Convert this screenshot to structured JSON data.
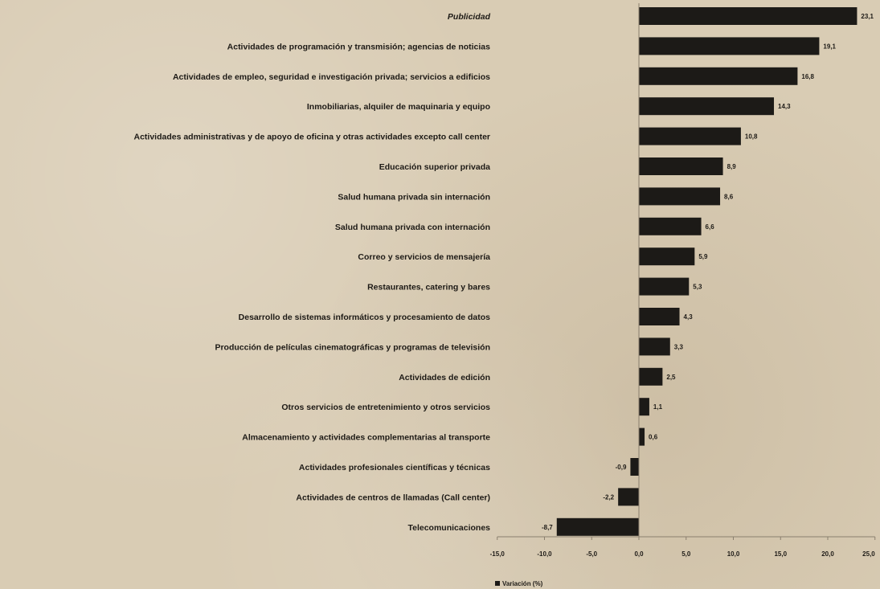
{
  "chart_data": {
    "type": "bar",
    "orientation": "horizontal",
    "categories": [
      "Publicidad",
      "Actividades de programación y transmisión; agencias de noticias",
      "Actividades de empleo, seguridad e investigación privada; servicios a edificios",
      "Inmobiliarias, alquiler de maquinaria y equipo",
      "Actividades administrativas y de apoyo de oficina y otras actividades excepto call center",
      "Educación superior privada",
      "Salud humana privada sin internación",
      "Salud humana privada con internación",
      "Correo y servicios de mensajería",
      "Restaurantes, catering y bares",
      "Desarrollo de sistemas informáticos y procesamiento de datos",
      "Producción de películas cinematográficas y programas de televisión",
      "Actividades de edición",
      "Otros servicios de entretenimiento y otros servicios",
      "Almacenamiento y actividades complementarias al transporte",
      "Actividades profesionales científicas y técnicas",
      "Actividades de centros de llamadas (Call center)",
      "Telecomunicaciones"
    ],
    "values": [
      23.1,
      19.1,
      16.8,
      14.3,
      10.8,
      8.9,
      8.6,
      6.6,
      5.9,
      5.3,
      4.3,
      3.3,
      2.5,
      1.1,
      0.6,
      -0.9,
      -2.2,
      -8.7
    ],
    "value_labels": [
      "23,1",
      "19,1",
      "16,8",
      "14,3",
      "10,8",
      "8,9",
      "8,6",
      "6,6",
      "5,9",
      "5,3",
      "4,3",
      "3,3",
      "2,5",
      "1,1",
      "0,6",
      "-0,9",
      "-2,2",
      "-8,7"
    ],
    "xlim": [
      -15,
      25
    ],
    "ticks": [
      -15,
      -10,
      -5,
      0,
      5,
      10,
      15,
      20,
      25
    ],
    "tick_labels": [
      "-15,0",
      "-10,0",
      "-5,0",
      "0,0",
      "5,0",
      "10,0",
      "15,0",
      "20,0",
      "25,0"
    ],
    "legend": "Variación (%)",
    "legend_position": "bottom-left",
    "bar_color": "#1c1a17",
    "grid": false,
    "title": "",
    "xlabel": "",
    "ylabel": ""
  }
}
